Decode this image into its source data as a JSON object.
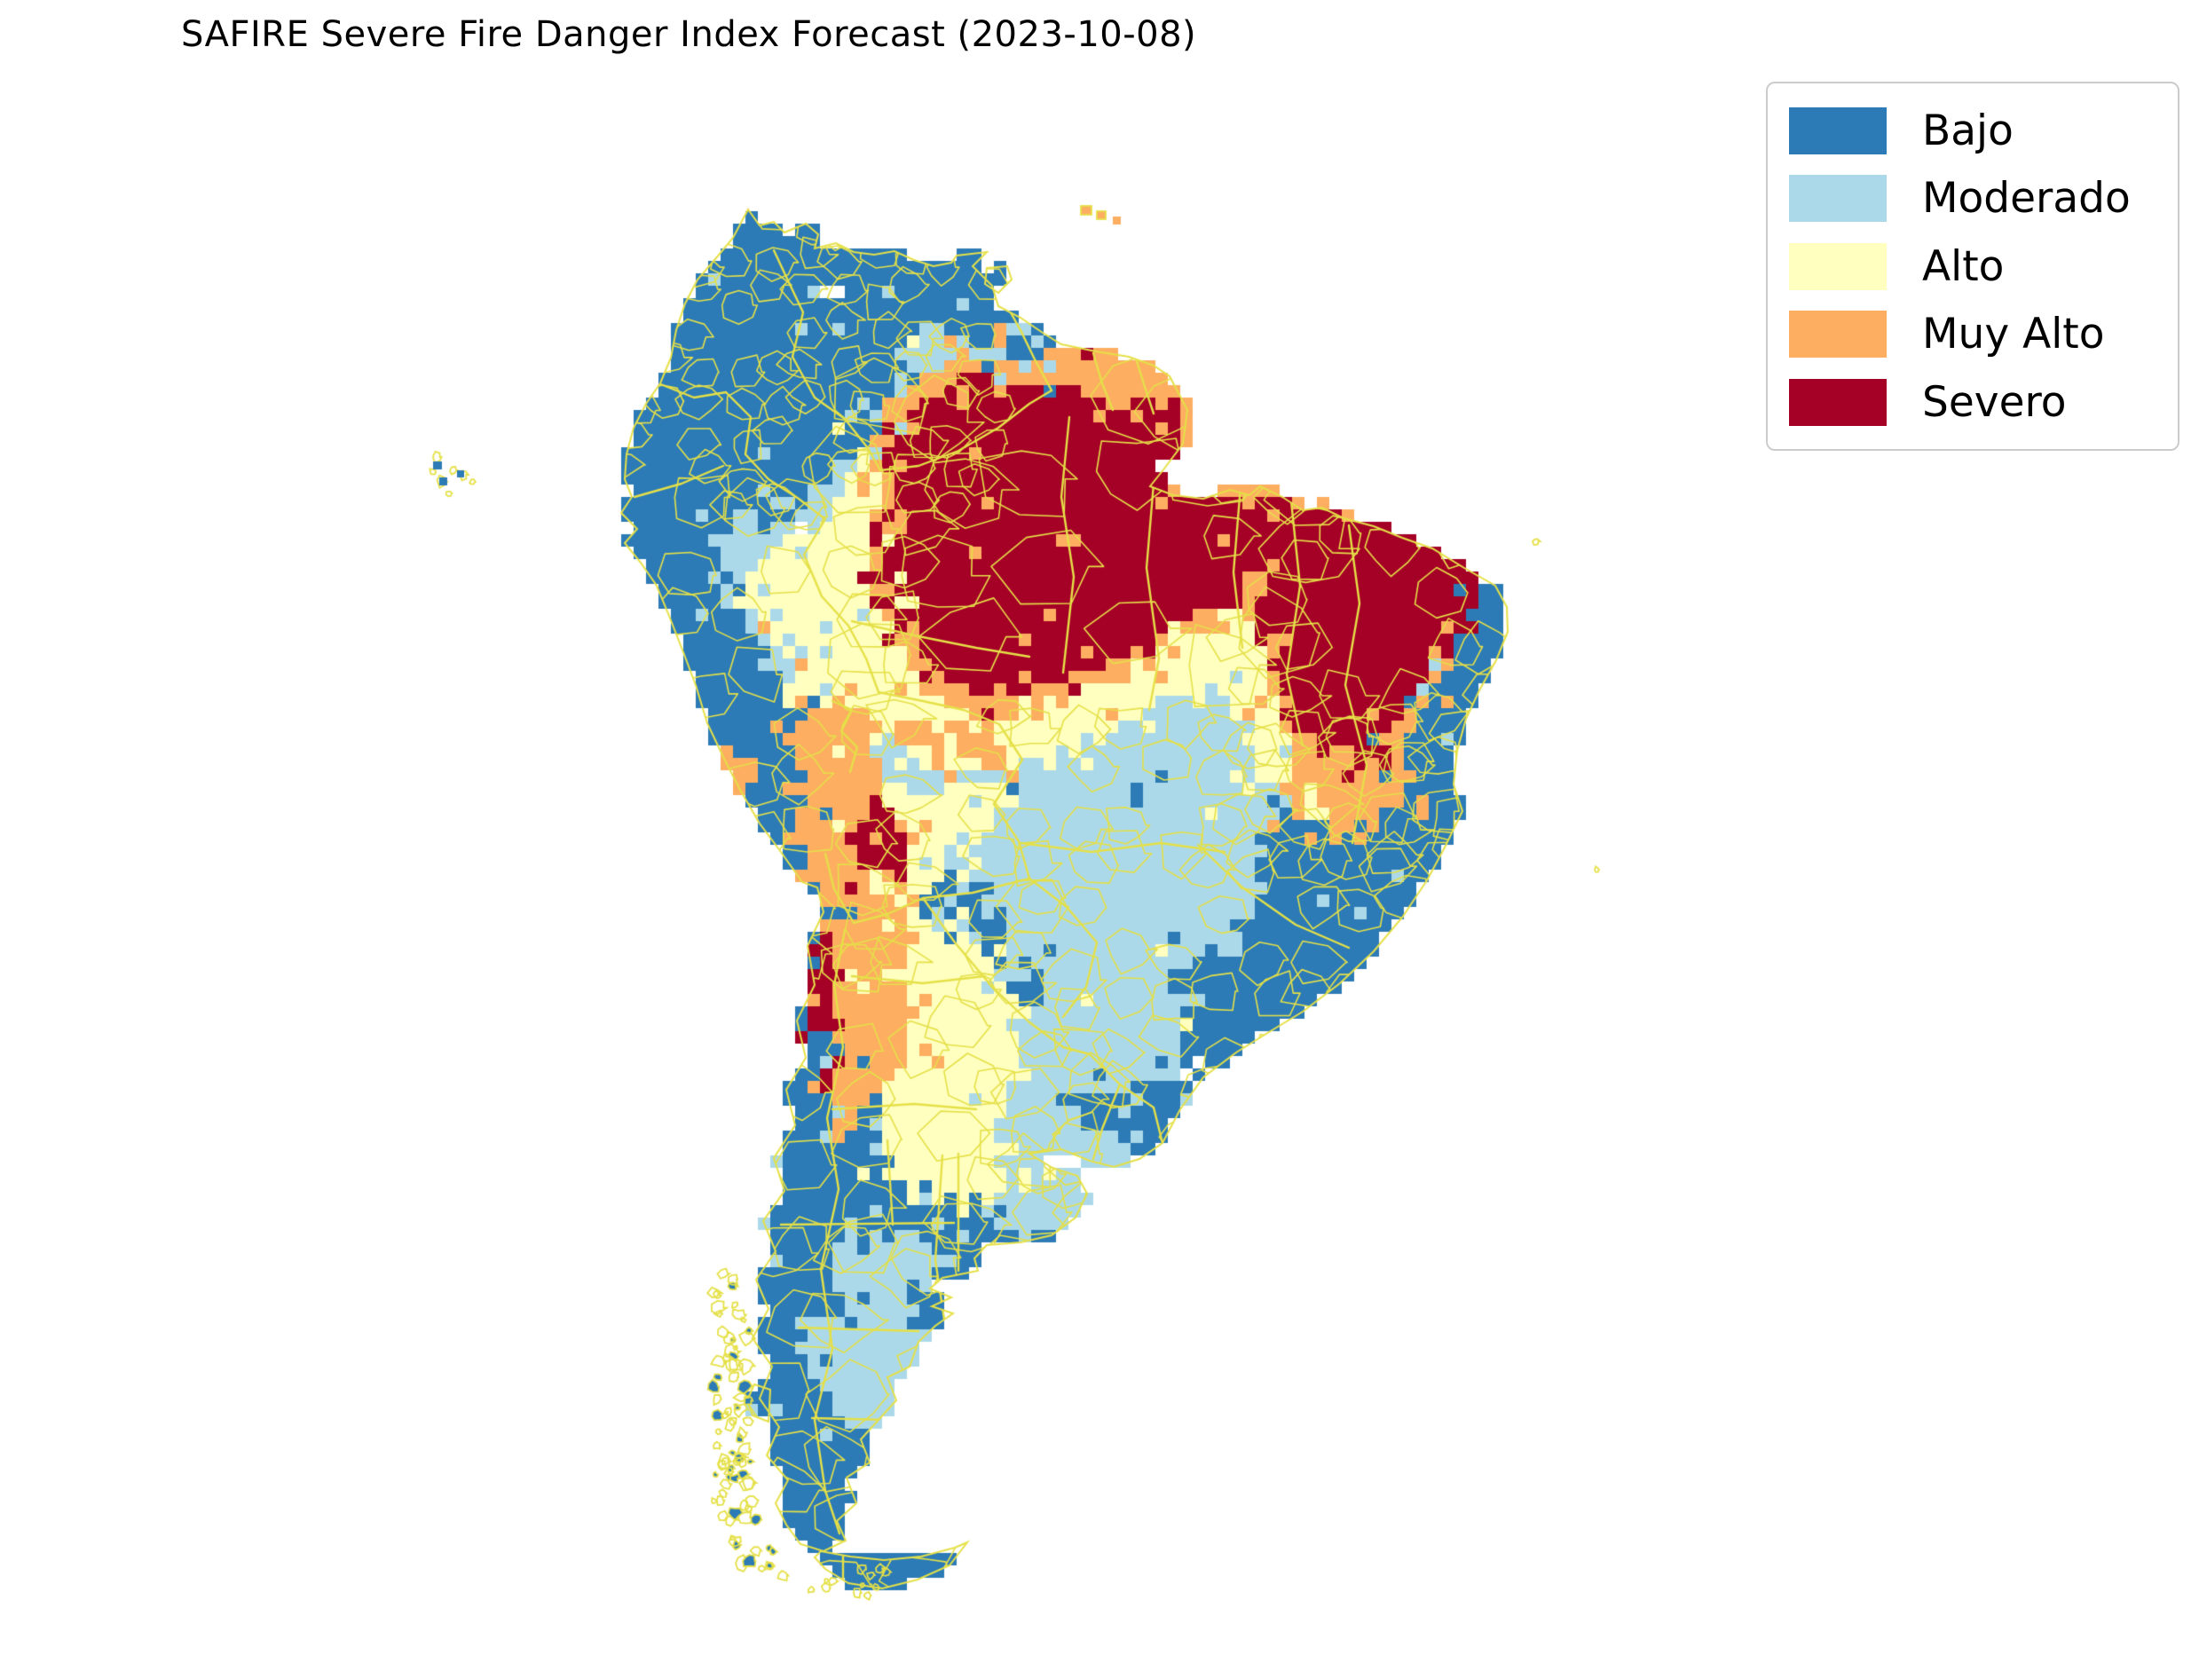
{
  "title": "SAFIRE Severe Fire Danger Index Forecast (2023-10-08)",
  "date": "2023-10-08",
  "legend": {
    "position": "upper right",
    "items": [
      {
        "label": "Bajo",
        "color": "#2c7bb6"
      },
      {
        "label": "Moderado",
        "color": "#abd9e9"
      },
      {
        "label": "Alto",
        "color": "#ffffbf"
      },
      {
        "label": "Muy Alto",
        "color": "#fdae61"
      },
      {
        "label": "Severo",
        "color": "#a50026"
      }
    ]
  },
  "map": {
    "area": "South America",
    "boundary_color": "#e5e048",
    "ocean_color": "#ffffff",
    "style": "pixelated raster grid with admin boundary overlay"
  },
  "chart_data": {
    "type": "heatmap",
    "title": "SAFIRE Severe Fire Danger Index Forecast (2023-10-08)",
    "date": "2023-10-08",
    "area": "South America",
    "categories": [
      "Bajo",
      "Moderado",
      "Alto",
      "Muy Alto",
      "Severo"
    ],
    "colors": [
      "#2c7bb6",
      "#abd9e9",
      "#ffffbf",
      "#fdae61",
      "#a50026"
    ],
    "legend_position": "upper right",
    "grid": false,
    "regions": [
      {
        "name": "Northern Amazon basin (Roraima, northern Para, northern Amazonas)",
        "level": "Severo"
      },
      {
        "name": "Northeastern Brazil interior (Maranhao, Piaui, Ceara, northern Bahia)",
        "level": "Severo"
      },
      {
        "name": "Amapa and Marajo area",
        "level": "Severo"
      },
      {
        "name": "Guianas coastal strip",
        "level": "Muy Alto"
      },
      {
        "name": "Halo ring around the severe Amazon core",
        "level": "Muy Alto"
      },
      {
        "name": "Bolivian Altiplano pocket",
        "level": "Severo"
      },
      {
        "name": "North-central Chilean coast strip",
        "level": "Severo"
      },
      {
        "name": "Andes strip from Bolivia to northwest Argentina",
        "level": "Muy Alto"
      },
      {
        "name": "Acre, Rondonia and eastern Peru lowlands",
        "level": "Alto"
      },
      {
        "name": "Central Argentina pampa core",
        "level": "Alto"
      },
      {
        "name": "Central Brazil / Mato Grosso and Paraguay",
        "level": "Moderado"
      },
      {
        "name": "Buenos Aires surroundings and central Patagonia patches",
        "level": "Moderado"
      },
      {
        "name": "Colombia, Venezuela, Peru coast, coastal Brazil, southern Chile and remainder",
        "level": "Bajo"
      }
    ]
  }
}
